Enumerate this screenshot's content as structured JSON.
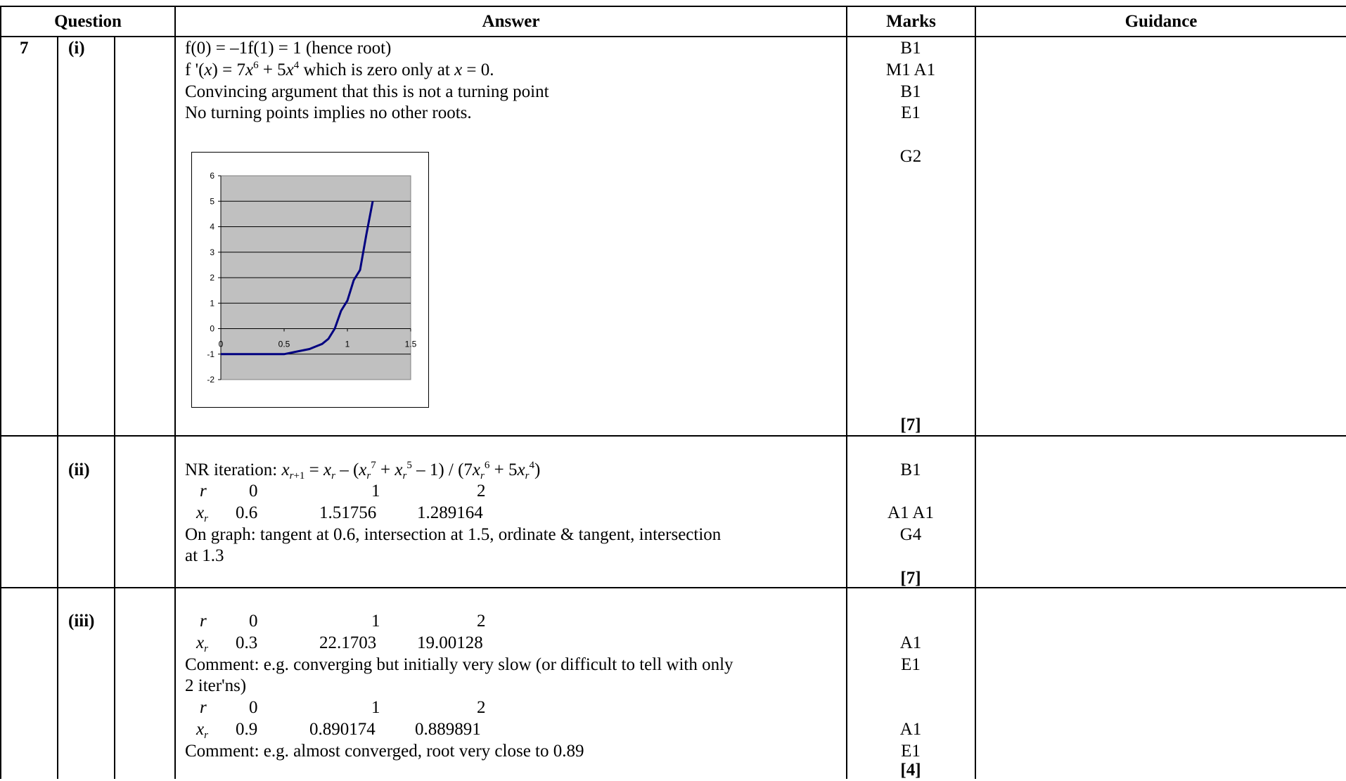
{
  "headers": {
    "question": "Question",
    "answer": "Answer",
    "marks": "Marks",
    "guidance": "Guidance"
  },
  "question_number": "7",
  "parts": [
    {
      "label": "(i)",
      "answer_lines": {
        "l1": "f(0) = –1f(1) = 1 (hence root)",
        "l2_a": "f '(",
        "l2_x1": "x",
        "l2_b": ") = 7",
        "l2_x2": "x",
        "l2_e1": "6",
        "l2_c": " + 5",
        "l2_x3": "x",
        "l2_e2": "4",
        "l2_d": " which is zero only at ",
        "l2_x4": "x",
        "l2_e": " = 0.",
        "l3": "Convincing argument that this is not a turning point",
        "l4": "No turning points implies no other roots."
      },
      "marks": [
        "B1",
        "M1 A1",
        "B1",
        "E1",
        "G2"
      ],
      "total": "[7]"
    },
    {
      "label": "(ii)",
      "answer_lines": {
        "nr_prefix": "NR iteration: ",
        "table_r": "r",
        "table_xr": "x",
        "table_xr_sub": "r",
        "r_values": [
          "0",
          "1",
          "2"
        ],
        "x_values": [
          "0.6",
          "1.51756",
          "1.289164"
        ],
        "l3": "On graph: tangent at 0.6, intersection at 1.5, ordinate & tangent, intersection",
        "l4": "at 1.3"
      },
      "marks": [
        "B1",
        "A1 A1",
        "G4"
      ],
      "total": "[7]"
    },
    {
      "label": "(iii)",
      "answer_lines": {
        "r_values_1": [
          "0",
          "1",
          "2"
        ],
        "x_values_1": [
          "0.3",
          "22.1703",
          "19.00128"
        ],
        "comment1_a": "Comment: e.g. converging but initially very slow (or difficult to tell with only",
        "comment1_b": "2 iter'ns)",
        "r_values_2": [
          "0",
          "1",
          "2"
        ],
        "x_values_2": [
          "0.9",
          "0.890174",
          "0.889891"
        ],
        "comment2": "Comment: e.g. almost converged, root very close to 0.89"
      },
      "marks": [
        "A1",
        "E1",
        "A1",
        "E1"
      ],
      "total": "[4]"
    }
  ],
  "chart_data": {
    "type": "line",
    "xlim": [
      0,
      1.5
    ],
    "ylim": [
      -2,
      6
    ],
    "x_ticks": [
      "0",
      "0.5",
      "1",
      "1.5"
    ],
    "y_ticks": [
      "6",
      "5",
      "4",
      "3",
      "2",
      "1",
      "0",
      "-1",
      "-2"
    ],
    "grid": "horizontal",
    "series": [
      {
        "color": "#000080",
        "x": [
          0,
          0.5,
          0.6,
          0.7,
          0.75,
          0.8,
          0.85,
          0.9,
          0.95,
          1.0,
          1.05,
          1.1,
          1.15,
          1.2
        ],
        "y": [
          -1,
          -1,
          -0.9,
          -0.8,
          -0.7,
          -0.6,
          -0.4,
          0,
          0.7,
          1.1,
          1.9,
          2.3,
          3.7,
          5.0
        ]
      }
    ]
  }
}
